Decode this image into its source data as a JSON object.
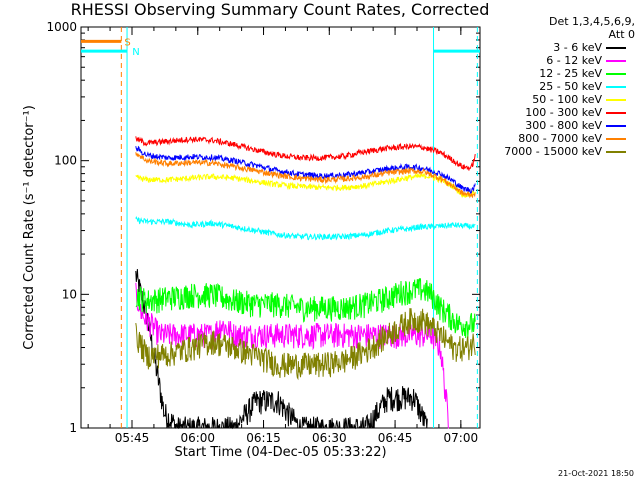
{
  "chart_data": {
    "type": "line",
    "title": "RHESSI Observing Summary Count Rates, Corrected",
    "xlabel": "Start Time (04-Dec-05 05:33:22)",
    "ylabel": "Corrected Count Rate (s⁻¹ detector⁻¹)",
    "yscale": "log",
    "ylim": [
      1,
      1000
    ],
    "xlim_minutes": [
      0,
      91
    ],
    "xticks": [
      {
        "label": "05:45",
        "minute": 11.63
      },
      {
        "label": "06:00",
        "minute": 26.63
      },
      {
        "label": "06:15",
        "minute": 41.63
      },
      {
        "label": "06:30",
        "minute": 56.63
      },
      {
        "label": "06:45",
        "minute": 71.63
      },
      {
        "label": "07:00",
        "minute": 86.63
      }
    ],
    "yticks": [
      {
        "label": "1",
        "value": 1
      },
      {
        "label": "10",
        "value": 10
      },
      {
        "label": "100",
        "value": 100
      },
      {
        "label": "1000",
        "value": 1000
      }
    ],
    "legend_header": [
      "Det 1,3,4,5,6,9,",
      "Att 0"
    ],
    "series": [
      {
        "name": "3 - 6 keV",
        "color": "#000000",
        "points": [
          [
            12.5,
            14
          ],
          [
            15,
            7
          ],
          [
            17,
            3
          ],
          [
            19,
            1.3
          ],
          [
            22,
            1
          ],
          [
            35,
            1
          ],
          [
            40,
            1.6
          ],
          [
            45,
            1.6
          ],
          [
            50,
            1
          ],
          [
            65,
            1
          ],
          [
            70,
            1.7
          ],
          [
            76,
            1.7
          ],
          [
            79,
            1
          ]
        ]
      },
      {
        "name": "6 - 12 keV",
        "color": "#ff00ff",
        "points": [
          [
            12.5,
            10
          ],
          [
            14,
            7
          ],
          [
            16,
            6
          ],
          [
            18,
            5
          ],
          [
            20,
            5
          ],
          [
            25,
            5
          ],
          [
            30,
            5
          ],
          [
            32,
            6
          ],
          [
            35,
            5
          ],
          [
            45,
            5
          ],
          [
            55,
            5
          ],
          [
            65,
            5
          ],
          [
            75,
            5
          ],
          [
            80,
            5
          ],
          [
            82,
            4
          ],
          [
            84,
            1
          ]
        ]
      },
      {
        "name": "12 - 25 keV",
        "color": "#00ff00",
        "points": [
          [
            12.5,
            10
          ],
          [
            15,
            9
          ],
          [
            20,
            9.5
          ],
          [
            25,
            10
          ],
          [
            30,
            10
          ],
          [
            35,
            9
          ],
          [
            40,
            8.5
          ],
          [
            45,
            8.5
          ],
          [
            50,
            8
          ],
          [
            55,
            8
          ],
          [
            60,
            8
          ],
          [
            65,
            8.5
          ],
          [
            70,
            9.5
          ],
          [
            73,
            10.5
          ],
          [
            78,
            11
          ],
          [
            80,
            10
          ],
          [
            82,
            8
          ],
          [
            84,
            7
          ],
          [
            86,
            6
          ],
          [
            88,
            6
          ],
          [
            90,
            6
          ]
        ]
      },
      {
        "name": "25 - 50 keV",
        "color": "#00ffff",
        "points": [
          [
            12.5,
            36
          ],
          [
            15,
            35
          ],
          [
            20,
            35
          ],
          [
            25,
            33
          ],
          [
            30,
            34
          ],
          [
            35,
            32
          ],
          [
            40,
            30
          ],
          [
            45,
            28
          ],
          [
            50,
            27
          ],
          [
            55,
            27
          ],
          [
            60,
            27
          ],
          [
            65,
            28
          ],
          [
            70,
            30
          ],
          [
            75,
            31
          ],
          [
            77,
            32
          ],
          [
            80,
            32
          ],
          [
            85,
            33
          ],
          [
            90,
            32
          ]
        ]
      },
      {
        "name": "50 - 100 keV",
        "color": "#ffff00",
        "points": [
          [
            12.5,
            75
          ],
          [
            15,
            72
          ],
          [
            20,
            72
          ],
          [
            25,
            74
          ],
          [
            30,
            76
          ],
          [
            35,
            74
          ],
          [
            40,
            70
          ],
          [
            45,
            66
          ],
          [
            50,
            64
          ],
          [
            55,
            63
          ],
          [
            60,
            63
          ],
          [
            65,
            65
          ],
          [
            70,
            70
          ],
          [
            75,
            75
          ],
          [
            79,
            77
          ],
          [
            82,
            72
          ],
          [
            85,
            64
          ],
          [
            87,
            56
          ],
          [
            89,
            56
          ],
          [
            90,
            60
          ]
        ]
      },
      {
        "name": "100 - 300 keV",
        "color": "#ff0000",
        "points": [
          [
            12.5,
            145
          ],
          [
            15,
            135
          ],
          [
            20,
            140
          ],
          [
            25,
            145
          ],
          [
            30,
            142
          ],
          [
            35,
            132
          ],
          [
            40,
            120
          ],
          [
            45,
            110
          ],
          [
            50,
            105
          ],
          [
            55,
            105
          ],
          [
            60,
            108
          ],
          [
            65,
            117
          ],
          [
            70,
            124
          ],
          [
            75,
            128
          ],
          [
            78,
            126
          ],
          [
            82,
            115
          ],
          [
            85,
            100
          ],
          [
            87,
            90
          ],
          [
            89,
            88
          ],
          [
            90,
            110
          ]
        ]
      },
      {
        "name": "300 - 800 keV",
        "color": "#0000ff",
        "points": [
          [
            12.5,
            125
          ],
          [
            15,
            110
          ],
          [
            20,
            105
          ],
          [
            25,
            107
          ],
          [
            30,
            106
          ],
          [
            35,
            100
          ],
          [
            40,
            92
          ],
          [
            45,
            84
          ],
          [
            50,
            79
          ],
          [
            55,
            77
          ],
          [
            60,
            78
          ],
          [
            65,
            82
          ],
          [
            70,
            87
          ],
          [
            75,
            90
          ],
          [
            78,
            88
          ],
          [
            82,
            80
          ],
          [
            85,
            70
          ],
          [
            87,
            62
          ],
          [
            89,
            60
          ],
          [
            90,
            65
          ]
        ]
      },
      {
        "name": "800 - 7000 keV",
        "color": "#ff8000",
        "points": [
          [
            12.5,
            115
          ],
          [
            15,
            100
          ],
          [
            20,
            95
          ],
          [
            25,
            97
          ],
          [
            30,
            96
          ],
          [
            35,
            90
          ],
          [
            40,
            84
          ],
          [
            45,
            78
          ],
          [
            50,
            74
          ],
          [
            55,
            72
          ],
          [
            60,
            73
          ],
          [
            65,
            76
          ],
          [
            70,
            81
          ],
          [
            75,
            84
          ],
          [
            78,
            83
          ],
          [
            82,
            74
          ],
          [
            85,
            64
          ],
          [
            87,
            57
          ],
          [
            89,
            55
          ],
          [
            90,
            58
          ]
        ]
      },
      {
        "name": "7000 - 15000 keV",
        "color": "#808000",
        "points": [
          [
            12.5,
            5
          ],
          [
            15,
            3.5
          ],
          [
            20,
            3.6
          ],
          [
            25,
            4
          ],
          [
            30,
            4.5
          ],
          [
            35,
            4
          ],
          [
            40,
            3.5
          ],
          [
            45,
            3
          ],
          [
            50,
            3
          ],
          [
            55,
            3
          ],
          [
            60,
            3.2
          ],
          [
            65,
            3.8
          ],
          [
            70,
            5
          ],
          [
            75,
            6.5
          ],
          [
            78,
            6.5
          ],
          [
            82,
            5
          ],
          [
            85,
            4
          ],
          [
            88,
            4
          ],
          [
            90,
            4.5
          ]
        ]
      }
    ],
    "annotations": [
      {
        "text": "S",
        "color": "#ff8000",
        "minute": 9.2,
        "value": 780
      },
      {
        "text": "N",
        "color": "#00ffff",
        "minute": 11.0,
        "value": 660
      }
    ],
    "flag_segments": [
      {
        "color": "#ff8000",
        "from_minute": 0,
        "to_minute": 9.2,
        "value": 780
      },
      {
        "color": "#00ffff",
        "from_minute": 0,
        "to_minute": 10.5,
        "value": 660
      },
      {
        "color": "#00ffff",
        "from_minute": 80.4,
        "to_minute": 91,
        "value": 660
      }
    ],
    "markers": [
      {
        "color": "#ff8000",
        "minute": 9.2,
        "style": "dashed"
      },
      {
        "color": "#00ffff",
        "minute": 10.5,
        "style": "solid"
      },
      {
        "color": "#00ffff",
        "minute": 80.4,
        "style": "solid"
      },
      {
        "color": "#00ffff",
        "minute": 90.4,
        "style": "dashed"
      }
    ]
  },
  "footer": "21-Oct-2021 18:50"
}
